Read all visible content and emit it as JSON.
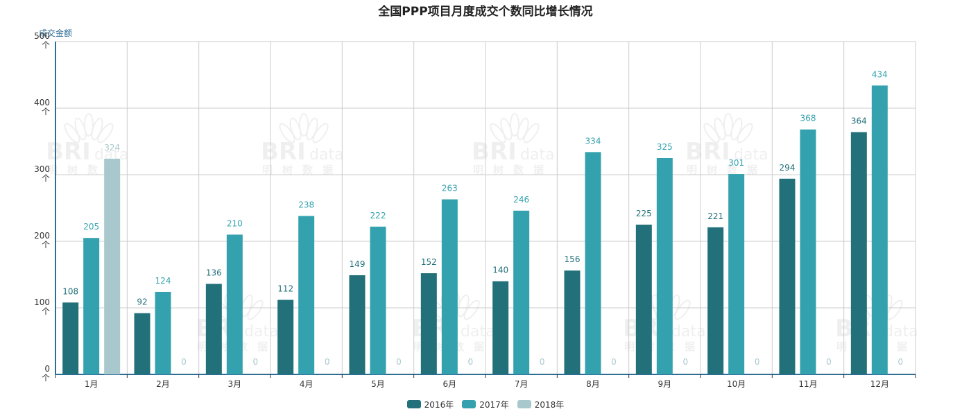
{
  "chart_data": {
    "type": "bar",
    "title": "全国PPP项目月度成交个数同比增长情况",
    "ylabel": "成交金额",
    "xlabel": "",
    "ylim": [
      0,
      500
    ],
    "yticks": [
      "0\n个",
      "100\n个",
      "200\n个",
      "300\n个",
      "400\n个",
      "500\n个"
    ],
    "ytick_values": [
      0,
      100,
      200,
      300,
      400,
      500
    ],
    "categories": [
      "1月",
      "2月",
      "3月",
      "4月",
      "5月",
      "6月",
      "7月",
      "8月",
      "9月",
      "10月",
      "11月",
      "12月"
    ],
    "series": [
      {
        "name": "2016年",
        "color": "#21707a",
        "values": [
          108,
          92,
          136,
          112,
          149,
          152,
          140,
          156,
          225,
          221,
          294,
          364
        ]
      },
      {
        "name": "2017年",
        "color": "#34a2ae",
        "values": [
          205,
          124,
          210,
          238,
          222,
          263,
          246,
          334,
          325,
          301,
          368,
          434
        ]
      },
      {
        "name": "2018年",
        "color": "#a9c8ce",
        "values": [
          324,
          0,
          0,
          0,
          0,
          0,
          0,
          0,
          0,
          0,
          0,
          0
        ]
      }
    ],
    "grid": true,
    "legend_position": "bottom-center"
  },
  "watermark": {
    "logo_big": "BRI",
    "logo_small": "data",
    "logo_cn": "明树数据"
  }
}
